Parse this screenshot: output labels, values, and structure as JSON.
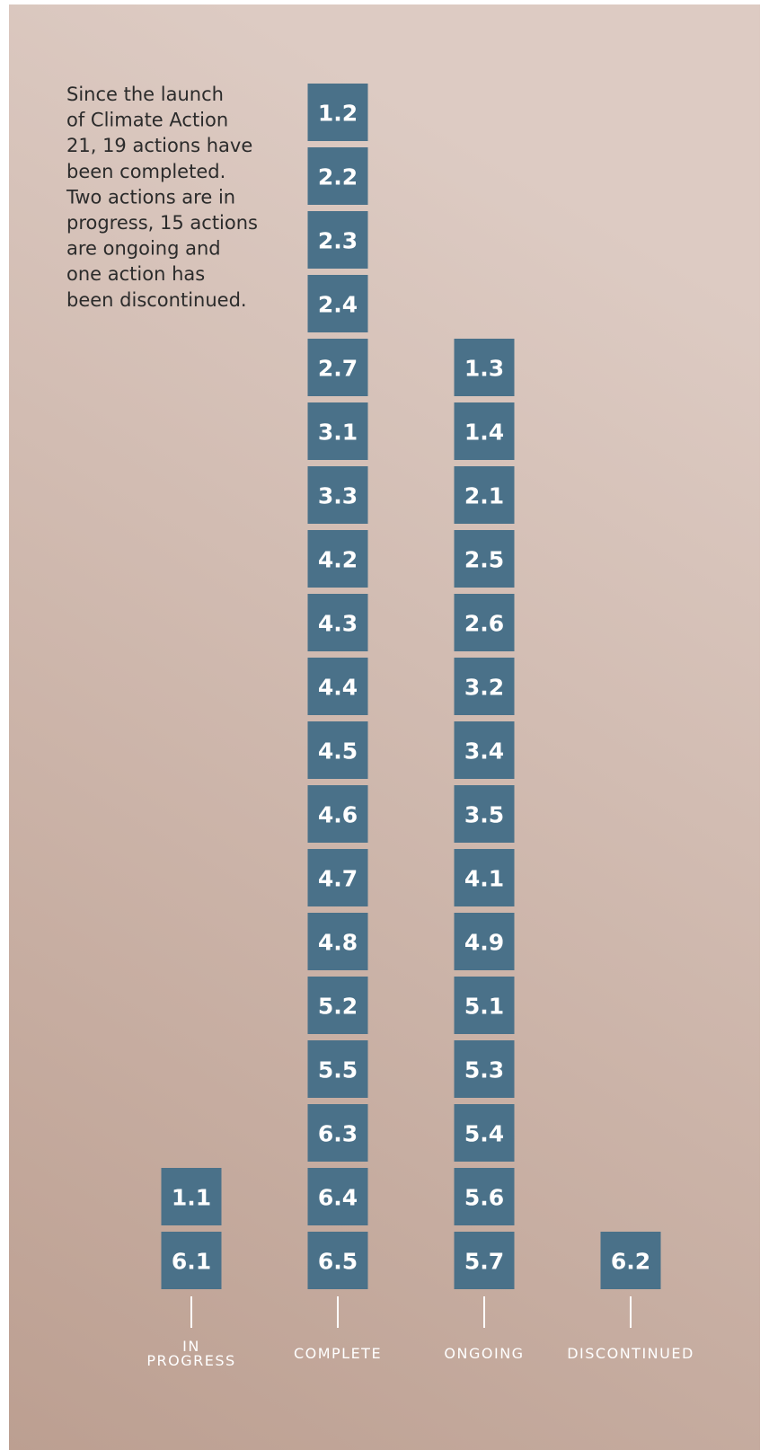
{
  "description": [
    "Since the launch",
    "of Climate Action",
    "21, 19 actions have",
    "been completed.",
    "Two actions are in",
    "progress, 15 actions",
    "are ongoing and",
    "one action has",
    "been discontinued."
  ],
  "columns": [
    {
      "label": [
        "IN",
        "PROGRESS"
      ],
      "items": [
        "1.1",
        "6.1"
      ]
    },
    {
      "label": [
        "COMPLETE"
      ],
      "items": [
        "1.2",
        "2.2",
        "2.3",
        "2.4",
        "2.7",
        "3.1",
        "3.3",
        "4.2",
        "4.3",
        "4.4",
        "4.5",
        "4.6",
        "4.7",
        "4.8",
        "5.2",
        "5.5",
        "6.3",
        "6.4",
        "6.5"
      ]
    },
    {
      "label": [
        "ONGOING"
      ],
      "items": [
        "1.3",
        "1.4",
        "2.1",
        "2.5",
        "2.6",
        "3.2",
        "3.4",
        "3.5",
        "4.1",
        "4.9",
        "5.1",
        "5.3",
        "5.4",
        "5.6",
        "5.7"
      ]
    },
    {
      "label": [
        "DISCONTINUED"
      ],
      "items": [
        "6.2"
      ]
    }
  ]
}
